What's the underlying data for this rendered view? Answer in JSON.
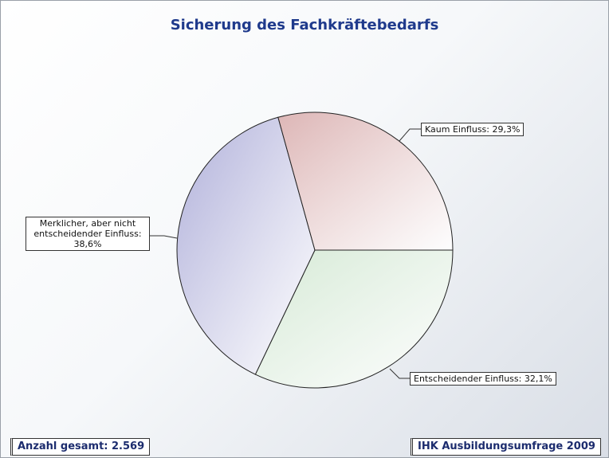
{
  "chart_data": {
    "type": "pie",
    "title": "Sicherung des Fachkräftebedarfs",
    "values": [
      32.1,
      38.6,
      29.3
    ],
    "value_labels": [
      "Entscheidender Einfluss: 32,1%",
      "Merklicher, aber nicht entscheidender Einfluss: 38,6%",
      "Kaum Einfluss: 29,3%"
    ],
    "colors": [
      "#d6ead6",
      "#b0b0da",
      "#ddb6b6"
    ],
    "annotations": [
      "Anzahl gesamt: 2.569",
      "IHK Ausbildungsumfrage 2009"
    ]
  }
}
